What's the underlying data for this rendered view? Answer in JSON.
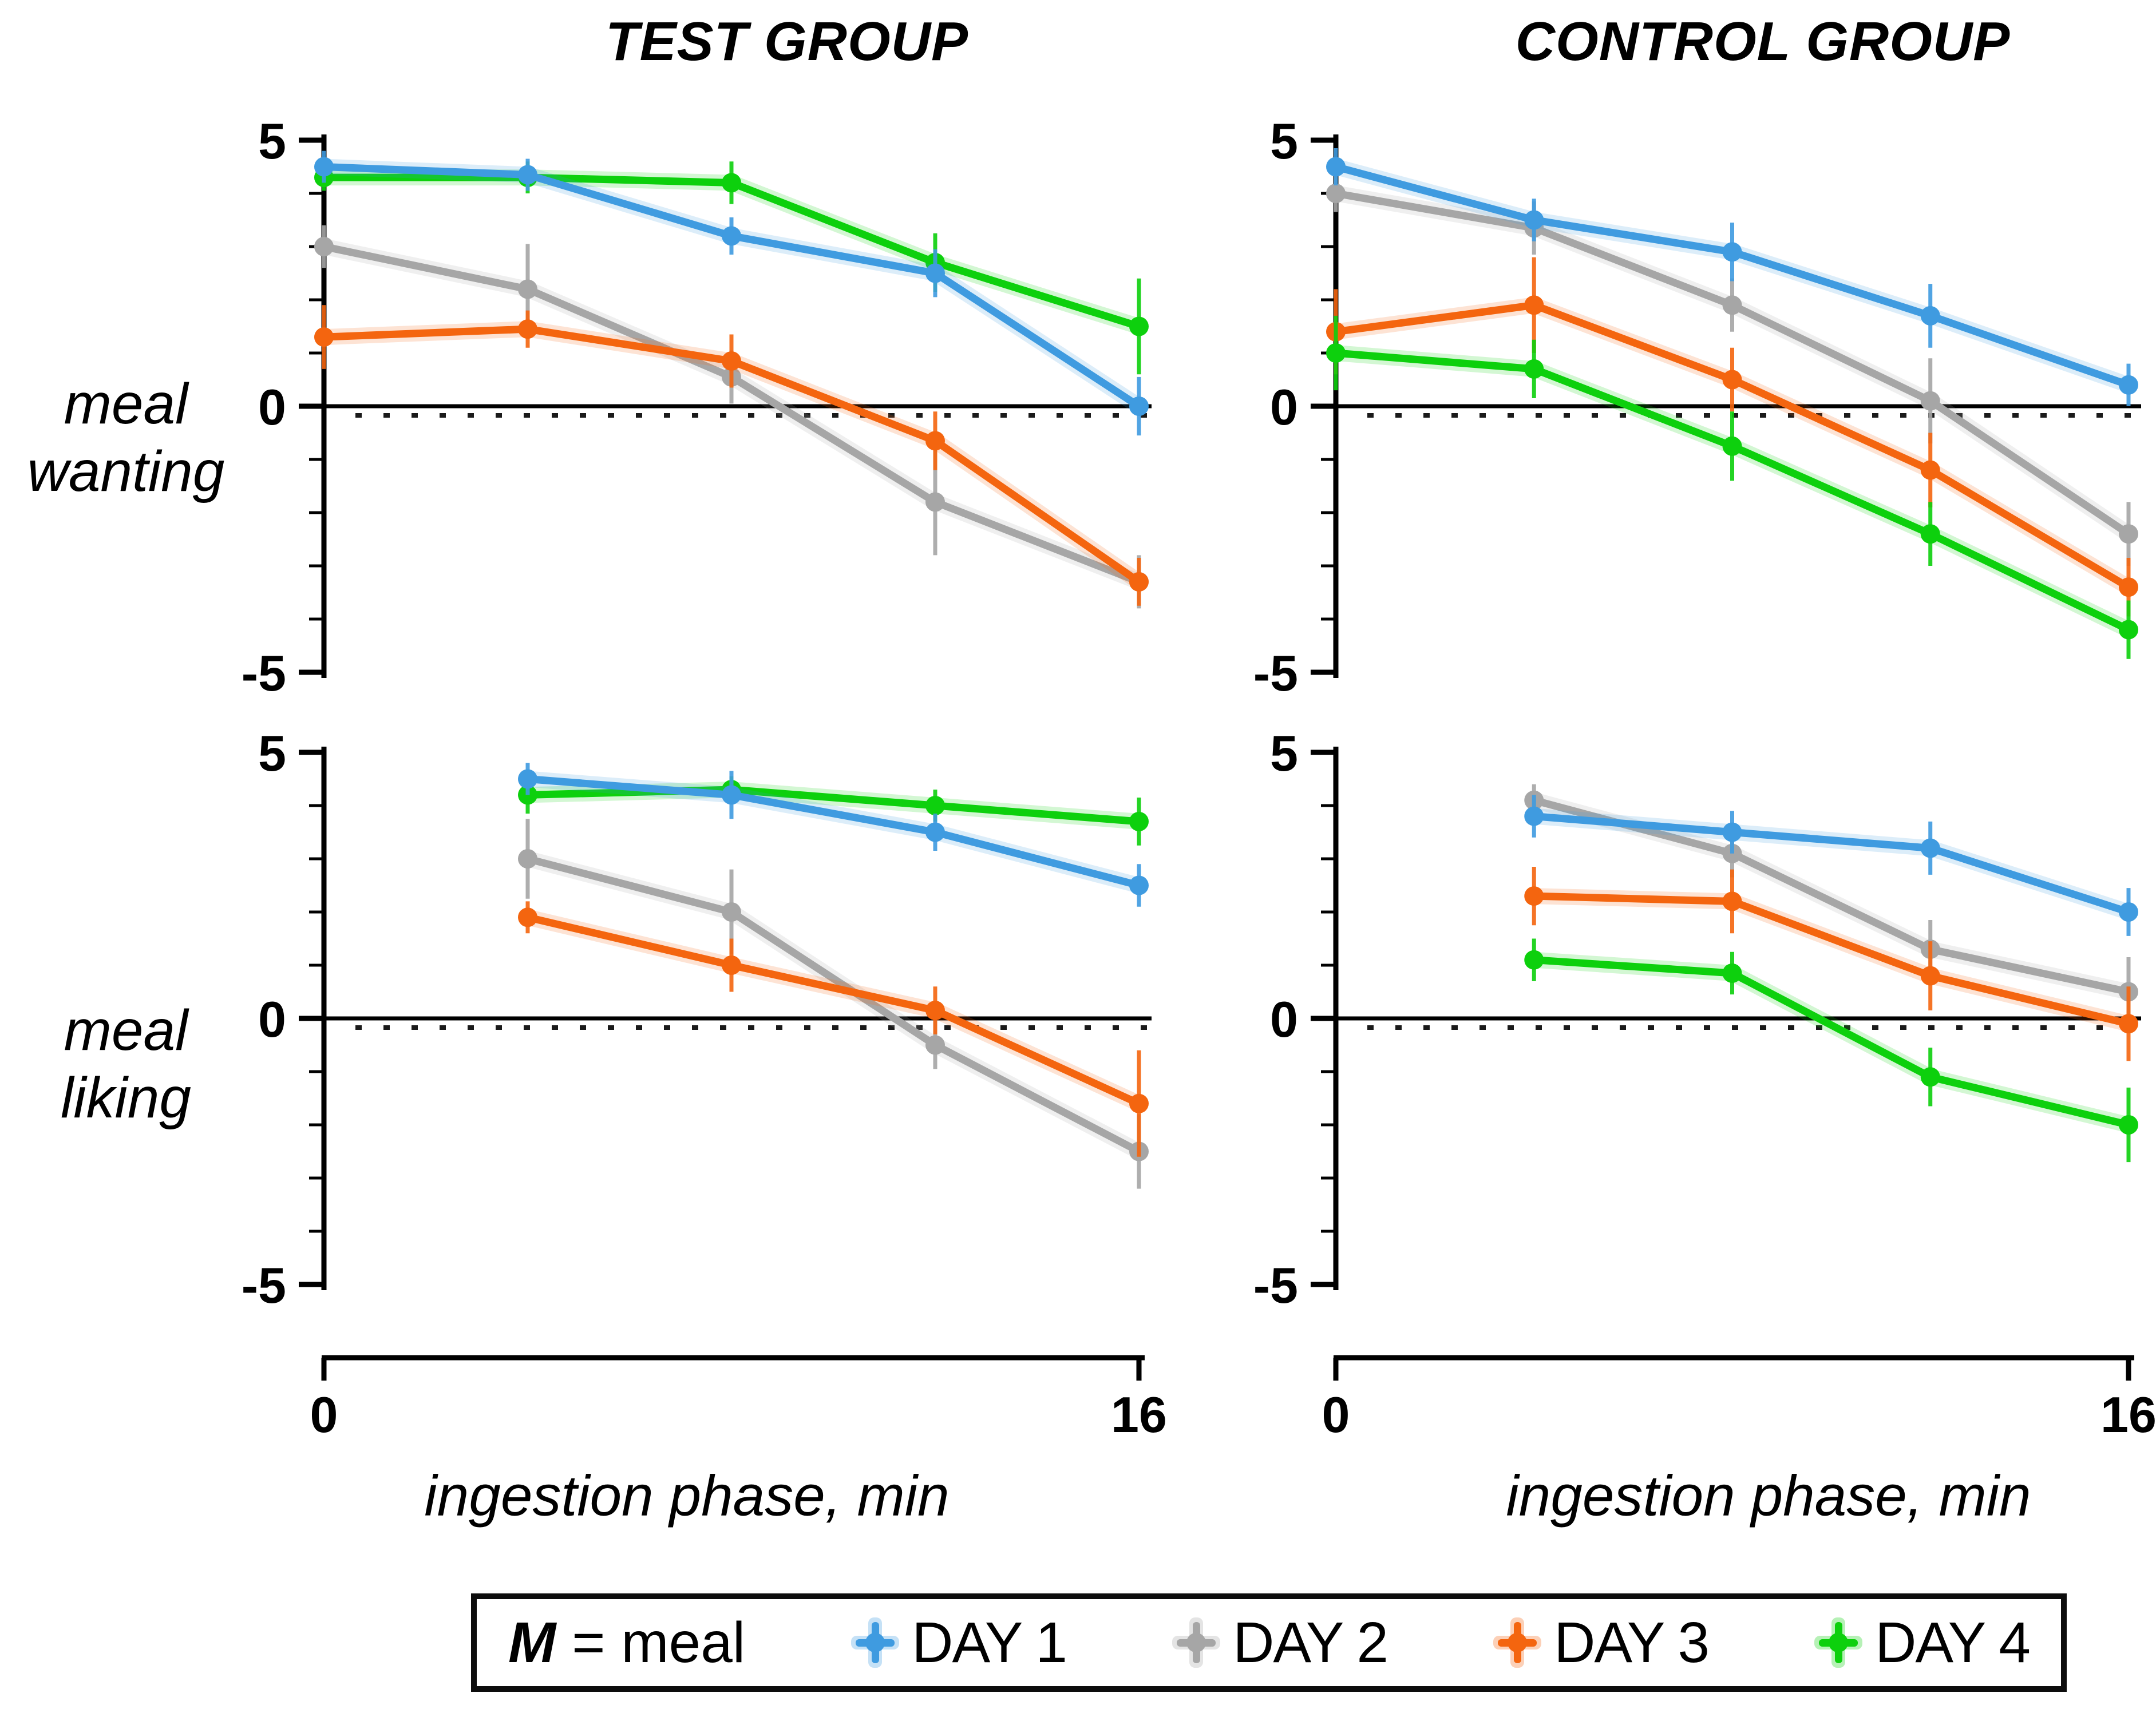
{
  "figure": {
    "columns": [
      "TEST GROUP",
      "CONTROL GROUP"
    ],
    "rows": [
      [
        "meal",
        "wanting"
      ],
      [
        "meal",
        "liking"
      ]
    ],
    "x_axis_label": "ingestion phase, min",
    "x_tick_labels": [
      "0",
      "16"
    ],
    "y_tick_labels": [
      "5",
      "0",
      "-5"
    ]
  },
  "legend": {
    "prefix_m": "M",
    "prefix_rest": "= meal",
    "items": [
      {
        "label": "DAY 1",
        "color": "#3f9be0"
      },
      {
        "label": "DAY 2",
        "color": "#a6a6a6"
      },
      {
        "label": "DAY 3",
        "color": "#f4650f"
      },
      {
        "label": "DAY 4",
        "color": "#0dd00d"
      }
    ]
  },
  "colors": {
    "day1": "#3f9be0",
    "day2": "#a6a6a6",
    "day3": "#f4650f",
    "day4": "#0dd00d",
    "axis": "#000000"
  },
  "chart_data": [
    {
      "id": "test-group-meal-wanting",
      "type": "line",
      "group": "TEST GROUP",
      "measure": "meal wanting",
      "xlabel": "ingestion phase, min",
      "xlim": [
        0,
        16
      ],
      "ylim": [
        -5,
        5
      ],
      "x": [
        0,
        4,
        8,
        12,
        16
      ],
      "series": [
        {
          "name": "DAY 1",
          "color": "#3f9be0",
          "values": [
            4.5,
            4.35,
            3.2,
            2.5,
            0.0
          ],
          "errors": [
            0.3,
            0.3,
            0.35,
            0.45,
            0.55
          ]
        },
        {
          "name": "DAY 2",
          "color": "#a6a6a6",
          "values": [
            3.0,
            2.2,
            0.55,
            -1.8,
            -3.3
          ],
          "errors": [
            0.4,
            0.85,
            0.5,
            1.0,
            0.5
          ]
        },
        {
          "name": "DAY 3",
          "color": "#f4650f",
          "values": [
            1.3,
            1.45,
            0.85,
            -0.65,
            -3.3
          ],
          "errors": [
            0.6,
            0.35,
            0.5,
            0.55,
            0.45
          ]
        },
        {
          "name": "DAY 4",
          "color": "#0dd00d",
          "values": [
            4.3,
            4.3,
            4.2,
            2.7,
            1.5
          ],
          "errors": [
            0.25,
            0.3,
            0.4,
            0.55,
            0.9
          ]
        }
      ]
    },
    {
      "id": "control-group-meal-wanting",
      "type": "line",
      "group": "CONTROL GROUP",
      "measure": "meal wanting",
      "xlabel": "ingestion phase, min",
      "xlim": [
        0,
        16
      ],
      "ylim": [
        -5,
        5
      ],
      "x": [
        0,
        4,
        8,
        12,
        16
      ],
      "series": [
        {
          "name": "DAY 1",
          "color": "#3f9be0",
          "values": [
            4.5,
            3.5,
            2.9,
            1.7,
            0.4
          ],
          "errors": [
            0.35,
            0.4,
            0.55,
            0.6,
            0.4
          ]
        },
        {
          "name": "DAY 2",
          "color": "#a6a6a6",
          "values": [
            4.0,
            3.35,
            1.9,
            0.1,
            -2.4
          ],
          "errors": [
            0.35,
            0.5,
            0.5,
            0.8,
            0.6
          ]
        },
        {
          "name": "DAY 3",
          "color": "#f4650f",
          "values": [
            1.4,
            1.9,
            0.5,
            -1.2,
            -3.4
          ],
          "errors": [
            0.8,
            0.9,
            0.6,
            0.7,
            0.55
          ]
        },
        {
          "name": "DAY 4",
          "color": "#0dd00d",
          "values": [
            1.0,
            0.7,
            -0.75,
            -2.4,
            -4.2
          ],
          "errors": [
            0.7,
            0.55,
            0.65,
            0.6,
            0.55
          ]
        }
      ]
    },
    {
      "id": "test-group-meal-liking",
      "type": "line",
      "group": "TEST GROUP",
      "measure": "meal liking",
      "xlabel": "ingestion phase, min",
      "xlim": [
        0,
        16
      ],
      "ylim": [
        -5,
        5
      ],
      "x": [
        4,
        8,
        12,
        16
      ],
      "series": [
        {
          "name": "DAY 1",
          "color": "#3f9be0",
          "values": [
            4.5,
            4.2,
            3.5,
            2.5
          ],
          "errors": [
            0.3,
            0.45,
            0.35,
            0.4
          ]
        },
        {
          "name": "DAY 2",
          "color": "#a6a6a6",
          "values": [
            3.0,
            2.0,
            -0.5,
            -2.5
          ],
          "errors": [
            0.75,
            0.8,
            0.45,
            0.7
          ]
        },
        {
          "name": "DAY 3",
          "color": "#f4650f",
          "values": [
            1.9,
            1.0,
            0.15,
            -1.6
          ],
          "errors": [
            0.3,
            0.5,
            0.45,
            1.0
          ]
        },
        {
          "name": "DAY 4",
          "color": "#0dd00d",
          "values": [
            4.2,
            4.3,
            4.0,
            3.7
          ],
          "errors": [
            0.35,
            0.25,
            0.3,
            0.45
          ]
        }
      ]
    },
    {
      "id": "control-group-meal-liking",
      "type": "line",
      "group": "CONTROL GROUP",
      "measure": "meal liking",
      "xlabel": "ingestion phase, min",
      "xlim": [
        0,
        16
      ],
      "ylim": [
        -5,
        5
      ],
      "x": [
        4,
        8,
        12,
        16
      ],
      "series": [
        {
          "name": "DAY 1",
          "color": "#3f9be0",
          "values": [
            3.8,
            3.5,
            3.2,
            2.0
          ],
          "errors": [
            0.4,
            0.4,
            0.5,
            0.45
          ]
        },
        {
          "name": "DAY 2",
          "color": "#a6a6a6",
          "values": [
            4.1,
            3.1,
            1.3,
            0.5
          ],
          "errors": [
            0.3,
            0.45,
            0.55,
            0.65
          ]
        },
        {
          "name": "DAY 3",
          "color": "#f4650f",
          "values": [
            2.3,
            2.2,
            0.8,
            -0.1
          ],
          "errors": [
            0.55,
            0.6,
            0.65,
            0.7
          ]
        },
        {
          "name": "DAY 4",
          "color": "#0dd00d",
          "values": [
            1.1,
            0.85,
            -1.1,
            -2.0
          ],
          "errors": [
            0.4,
            0.4,
            0.55,
            0.7
          ]
        }
      ]
    }
  ]
}
